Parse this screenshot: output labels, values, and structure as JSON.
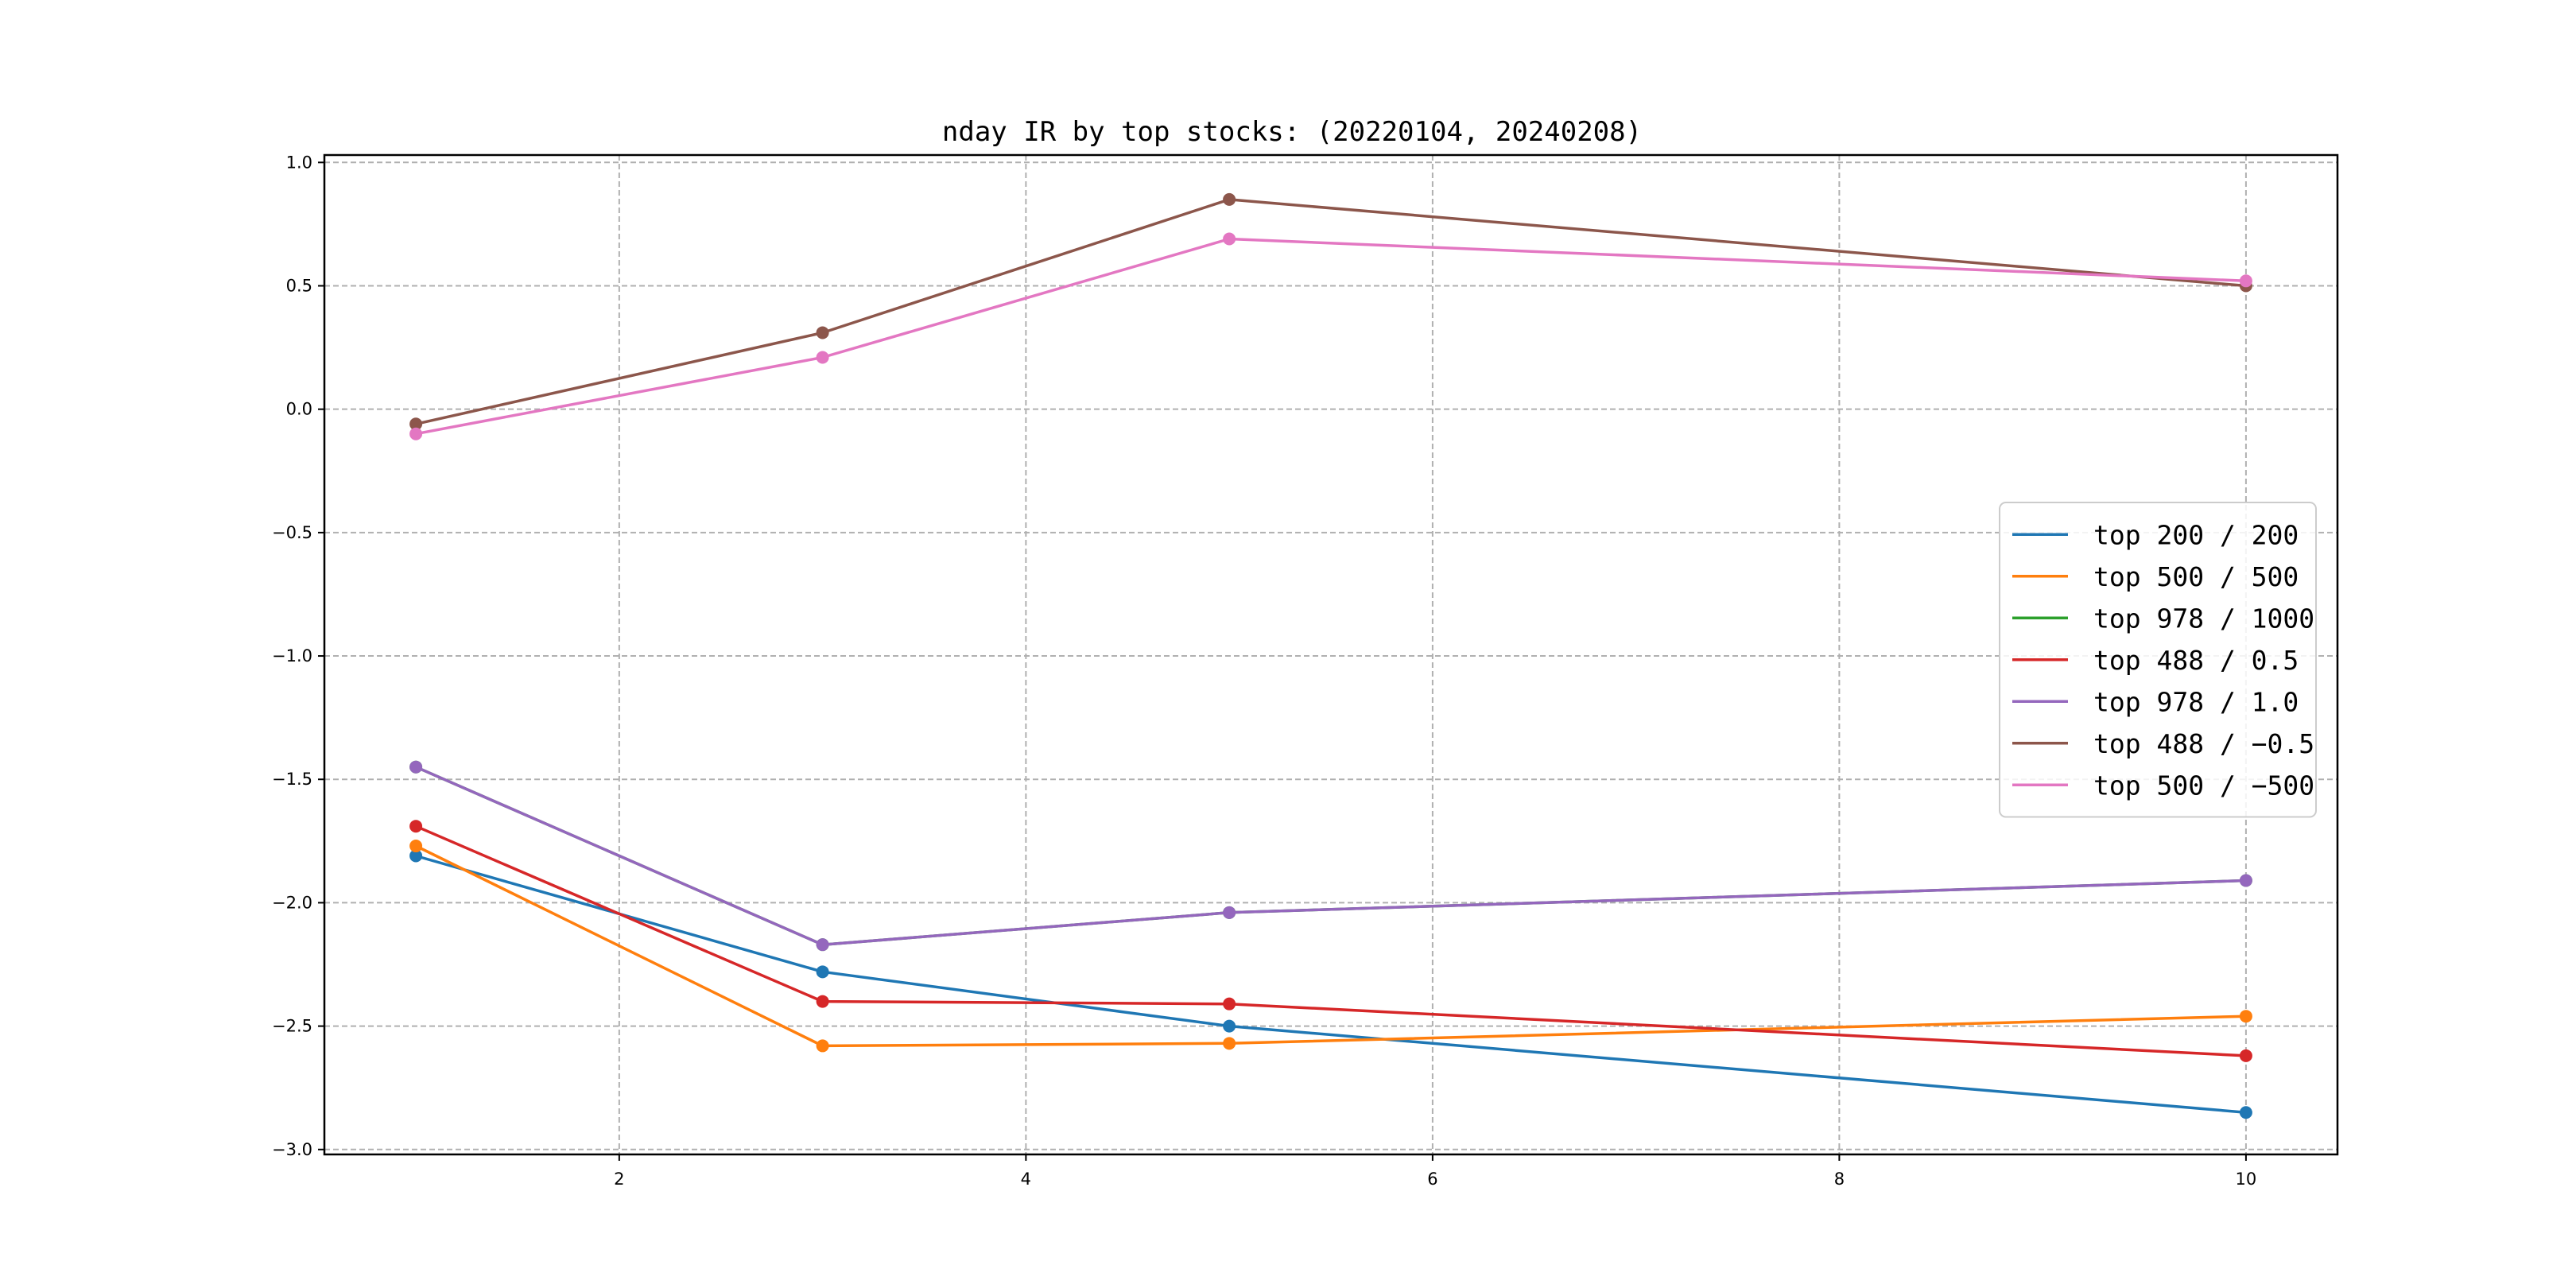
{
  "chart_data": {
    "type": "line",
    "title": "nday IR by top stocks: (20220104, 20240208)",
    "xlabel": "",
    "ylabel": "",
    "x": [
      1,
      3,
      5,
      10
    ],
    "xlim": [
      0.55,
      10.45
    ],
    "ylim": [
      -3.02,
      1.03
    ],
    "xticks": [
      2,
      4,
      6,
      8,
      10
    ],
    "xtick_labels": [
      "2",
      "4",
      "6",
      "8",
      "10"
    ],
    "yticks": [
      1.0,
      0.5,
      0.0,
      -0.5,
      -1.0,
      -1.5,
      -2.0,
      -2.5,
      -3.0
    ],
    "ytick_labels": [
      "1.0",
      "0.5",
      "0.0",
      "−0.5",
      "−1.0",
      "−1.5",
      "−2.0",
      "−2.5",
      "−3.0"
    ],
    "grid": true,
    "legend_position": "center-right",
    "markers": true,
    "series": [
      {
        "name": "top 200 / 200",
        "color": "#1f77b4",
        "values": [
          -1.81,
          -2.28,
          -2.5,
          -2.85
        ]
      },
      {
        "name": "top 500 / 500",
        "color": "#ff7f0e",
        "values": [
          -1.77,
          -2.58,
          -2.57,
          -2.46
        ]
      },
      {
        "name": "top 978 / 1000",
        "color": "#2ca02c",
        "values": [
          -1.45,
          -2.17,
          -2.04,
          -1.91
        ]
      },
      {
        "name": "top 488 / 0.5",
        "color": "#d62728",
        "values": [
          -1.69,
          -2.4,
          -2.41,
          -2.62
        ]
      },
      {
        "name": "top 978 / 1.0",
        "color": "#9467bd",
        "values": [
          -1.45,
          -2.17,
          -2.04,
          -1.91
        ]
      },
      {
        "name": "top 488 / −0.5",
        "color": "#8c564b",
        "values": [
          -0.06,
          0.31,
          0.85,
          0.5
        ]
      },
      {
        "name": "top 500 / −500",
        "color": "#e377c2",
        "values": [
          -0.1,
          0.21,
          0.69,
          0.52
        ]
      }
    ]
  }
}
